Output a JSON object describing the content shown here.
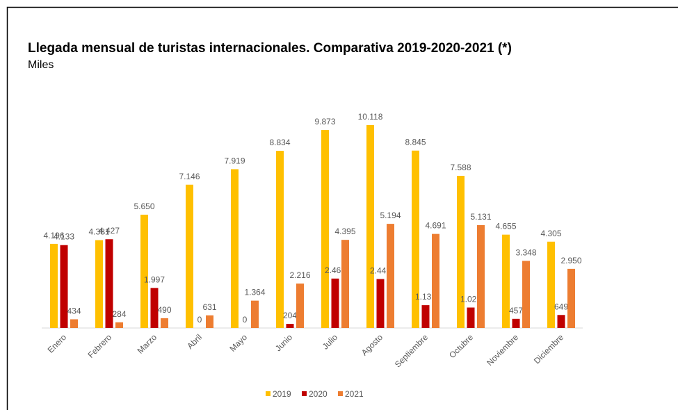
{
  "chart_data": {
    "type": "bar",
    "title": "Llegada mensual de turistas internacionales. Comparativa 2019-2020-2021 (*)",
    "subtitle": "Miles",
    "categories": [
      "Enero",
      "Febrero",
      "Marzo",
      "Abril",
      "Mayo",
      "Junio",
      "Julio",
      "Agosto",
      "Septiembre",
      "Octubre",
      "Noviembre",
      "Diciembre"
    ],
    "series": [
      {
        "name": "2019",
        "color": "#FFC000",
        "values": [
          4196,
          4381,
          5650,
          7146,
          7919,
          8834,
          9873,
          10118,
          8845,
          7588,
          4655,
          4305
        ],
        "value_labels": [
          "4.196",
          "4.381",
          "5.650",
          "7.146",
          "7.919",
          "8.834",
          "9.873",
          "10.118",
          "8.845",
          "7.588",
          "4.655",
          "4.305"
        ]
      },
      {
        "name": "2020",
        "color": "#C00000",
        "values": [
          4133,
          4427,
          1997,
          0,
          0,
          204,
          2465,
          2441,
          1139,
          1021,
          457,
          649
        ],
        "value_labels": [
          "4.133",
          "4.427",
          "1.997",
          "0",
          "0",
          "204",
          "2.465",
          "2.441",
          "1.139",
          "1.021",
          "457",
          "649"
        ]
      },
      {
        "name": "2021",
        "color": "#ED7D31",
        "values": [
          434,
          284,
          490,
          631,
          1364,
          2216,
          4395,
          5194,
          4691,
          5131,
          3348,
          2950
        ],
        "value_labels": [
          "434",
          "284",
          "490",
          "631",
          "1.364",
          "2.216",
          "4.395",
          "5.194",
          "4.691",
          "5.131",
          "3.348",
          "2.950"
        ]
      }
    ],
    "legend": "bottom"
  }
}
